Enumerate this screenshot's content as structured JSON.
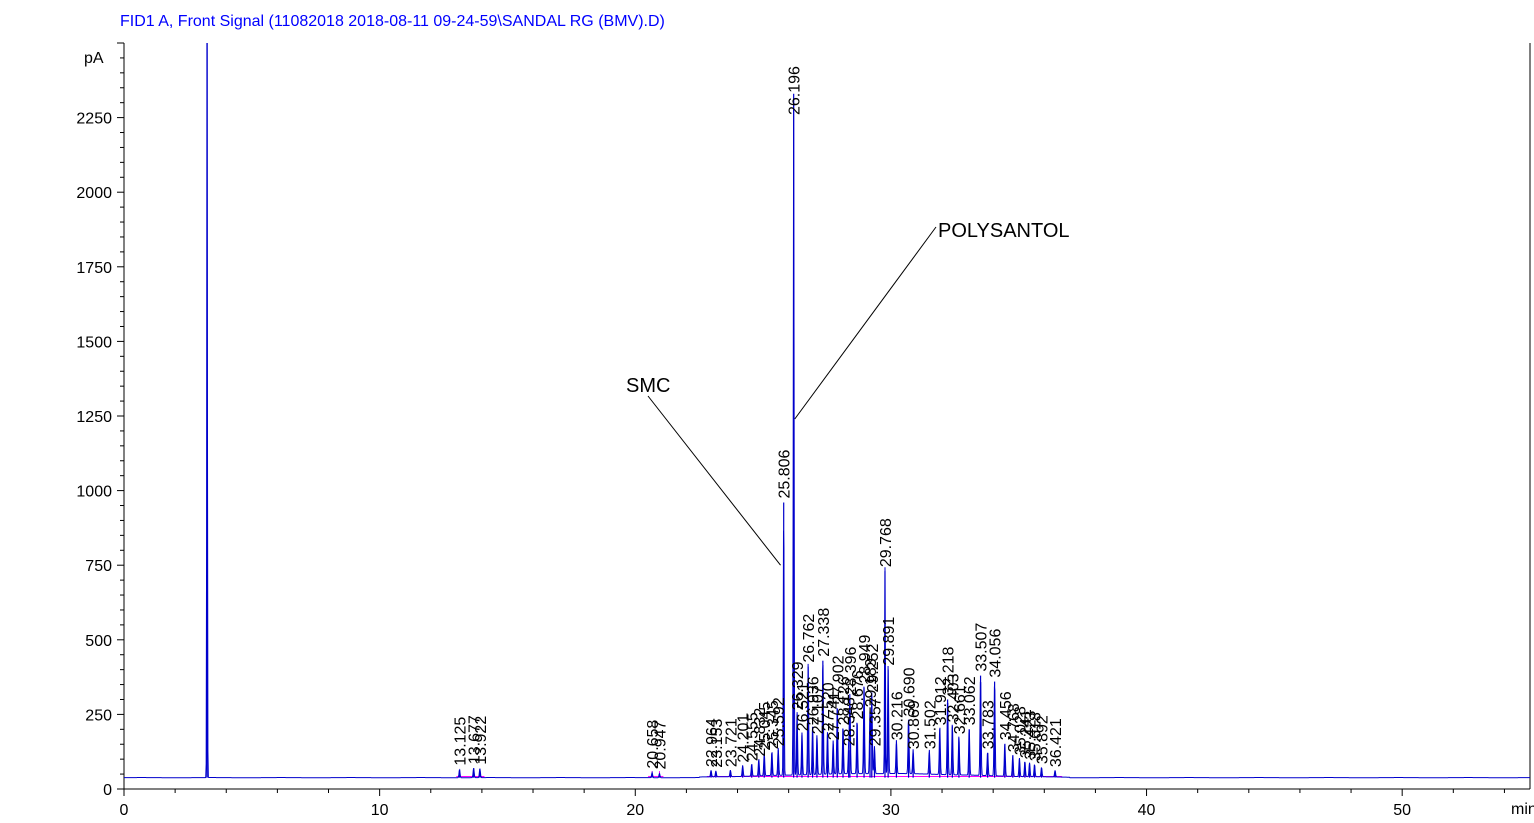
{
  "chart_data": {
    "type": "line",
    "title": "FID1 A, Front Signal (11082018 2018-08-11 09-24-59\\SANDAL  RG (BMV).D)",
    "xlabel": "min",
    "ylabel": "pA",
    "xlim": [
      0,
      55
    ],
    "ylim": [
      0,
      2500
    ],
    "x_ticks": [
      0,
      10,
      20,
      30,
      40,
      50
    ],
    "y_ticks": [
      0,
      250,
      500,
      750,
      1000,
      1250,
      1500,
      1750,
      2000,
      2250
    ],
    "baseline": 38,
    "colors": {
      "signal": "#0000cc",
      "integration": "#ff00ff",
      "title": "#0000ff",
      "axis": "#000000"
    },
    "solvent_peak": {
      "x": 3.25,
      "y": 2500
    },
    "series": [
      {
        "type": "peaks",
        "peaks": [
          {
            "x": 13.125,
            "y": 65,
            "label": "13.125"
          },
          {
            "x": 13.677,
            "y": 70,
            "label": "13.677"
          },
          {
            "x": 13.922,
            "y": 68,
            "label": "13.922"
          },
          {
            "x": 20.658,
            "y": 55,
            "label": "20.658"
          },
          {
            "x": 20.947,
            "y": 52,
            "label": "20.947"
          },
          {
            "x": 22.964,
            "y": 60,
            "label": "22.964"
          },
          {
            "x": 23.153,
            "y": 58,
            "label": "23.153"
          },
          {
            "x": 23.721,
            "y": 60,
            "label": "23.721"
          },
          {
            "x": 24.201,
            "y": 75,
            "label": "24.201"
          },
          {
            "x": 24.555,
            "y": 80,
            "label": "24.555"
          },
          {
            "x": 24.832,
            "y": 95,
            "label": "24.832"
          },
          {
            "x": 25.045,
            "y": 115,
            "label": "25.045"
          },
          {
            "x": 25.345,
            "y": 120,
            "label": "25.345"
          },
          {
            "x": 25.592,
            "y": 130,
            "label": "25.592"
          },
          {
            "x": 25.806,
            "y": 960,
            "label": "25.806"
          },
          {
            "x": 26.196,
            "y": 2330,
            "label": "26.196"
          },
          {
            "x": 26.329,
            "y": 250,
            "label": "26.329"
          },
          {
            "x": 26.521,
            "y": 180,
            "label": "26.521"
          },
          {
            "x": 26.762,
            "y": 410,
            "label": "26.762"
          },
          {
            "x": 26.936,
            "y": 200,
            "label": "26.936"
          },
          {
            "x": 27.107,
            "y": 170,
            "label": "27.107"
          },
          {
            "x": 27.338,
            "y": 430,
            "label": "27.338"
          },
          {
            "x": 27.52,
            "y": 180,
            "label": "27.520"
          },
          {
            "x": 27.741,
            "y": 150,
            "label": "27.741"
          },
          {
            "x": 27.902,
            "y": 270,
            "label": "27.902"
          },
          {
            "x": 28.126,
            "y": 200,
            "label": "28.126"
          },
          {
            "x": 28.348,
            "y": 130,
            "label": "28.348"
          },
          {
            "x": 28.396,
            "y": 300,
            "label": "28.396"
          },
          {
            "x": 28.676,
            "y": 220,
            "label": "28.676"
          },
          {
            "x": 28.949,
            "y": 340,
            "label": "28.949"
          },
          {
            "x": 29.183,
            "y": 260,
            "label": "29.183"
          },
          {
            "x": 29.252,
            "y": 310,
            "label": "29.252"
          },
          {
            "x": 29.357,
            "y": 130,
            "label": "29.357"
          },
          {
            "x": 29.768,
            "y": 730,
            "label": "29.768"
          },
          {
            "x": 29.891,
            "y": 400,
            "label": "29.891"
          },
          {
            "x": 30.216,
            "y": 150,
            "label": "30.216"
          },
          {
            "x": 30.69,
            "y": 230,
            "label": "30.690"
          },
          {
            "x": 30.869,
            "y": 120,
            "label": "30.869"
          },
          {
            "x": 31.502,
            "y": 120,
            "label": "31.502"
          },
          {
            "x": 31.912,
            "y": 200,
            "label": "31.912"
          },
          {
            "x": 32.218,
            "y": 300,
            "label": "32.218"
          },
          {
            "x": 32.403,
            "y": 210,
            "label": "32.403"
          },
          {
            "x": 32.661,
            "y": 170,
            "label": "32.661"
          },
          {
            "x": 33.062,
            "y": 200,
            "label": "33.062"
          },
          {
            "x": 33.507,
            "y": 380,
            "label": "33.507"
          },
          {
            "x": 33.783,
            "y": 120,
            "label": "33.783"
          },
          {
            "x": 34.056,
            "y": 360,
            "label": "34.056"
          },
          {
            "x": 34.456,
            "y": 150,
            "label": "34.456"
          },
          {
            "x": 34.768,
            "y": 110,
            "label": "34.768"
          },
          {
            "x": 35.028,
            "y": 100,
            "label": "35.028"
          },
          {
            "x": 35.241,
            "y": 90,
            "label": "35.241"
          },
          {
            "x": 35.423,
            "y": 85,
            "label": "35.423"
          },
          {
            "x": 35.618,
            "y": 80,
            "label": "35.618"
          },
          {
            "x": 35.892,
            "y": 70,
            "label": "35.892"
          },
          {
            "x": 36.421,
            "y": 60,
            "label": "36.421"
          }
        ]
      }
    ],
    "annotations": [
      {
        "text": "SMC",
        "x": 25.8,
        "y": 750
      },
      {
        "text": "POLYSANTOL",
        "x": 26.2,
        "y": 1240
      }
    ]
  }
}
